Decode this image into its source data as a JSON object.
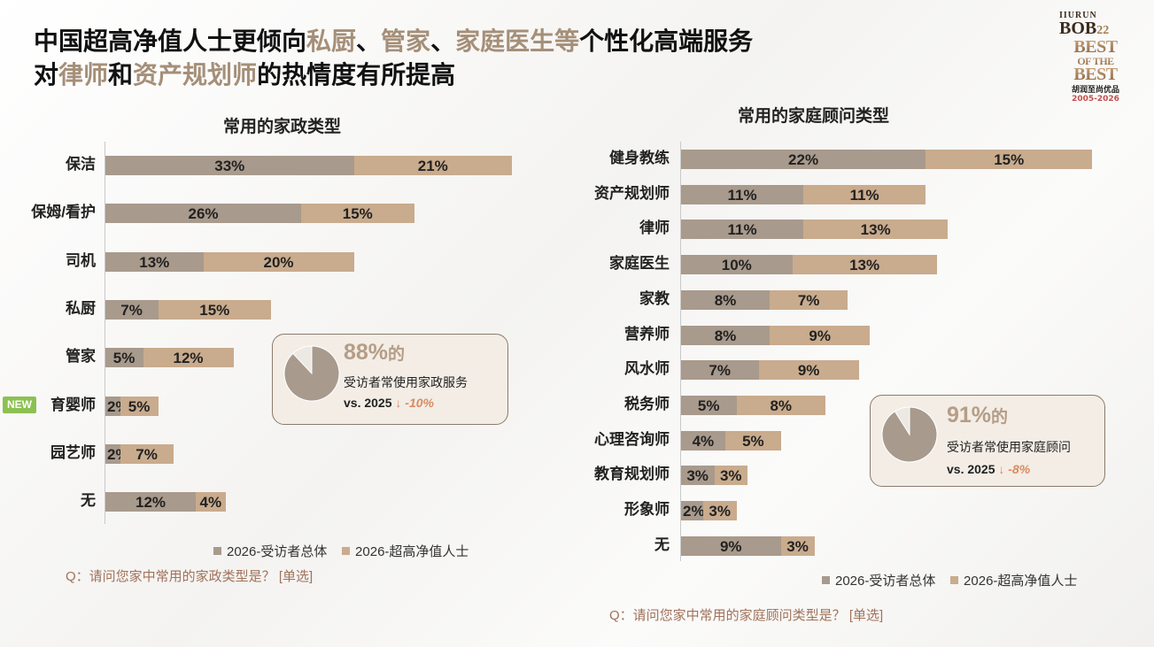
{
  "title": {
    "line1_parts": [
      "中国超高净值人士更倾向",
      "私厨",
      "、",
      "管家",
      "、",
      "家庭医生",
      "等",
      "个性化高端服务"
    ],
    "line2_parts": [
      "对",
      "律师",
      "和",
      "资产规划师",
      "的热情度有所提高"
    ]
  },
  "logo": {
    "line1": "IIURUN",
    "line2": "BOB",
    "line2b": "22",
    "line3": "BEST",
    "line3b": "OF THE",
    "line3c": "BEST",
    "line4": "胡润至尚优品",
    "line5": "2005-2026"
  },
  "new_badge": "NEW",
  "colors": {
    "series1": "#a89a8c",
    "series2": "#c9ab8d",
    "accent_text": "#a58f78",
    "question": "#a0725a",
    "change": "#d98b5f"
  },
  "chart_data": [
    {
      "type": "bar",
      "orientation": "horizontal",
      "stacked": true,
      "title": "常用的家政类型",
      "categories": [
        "保洁",
        "保姆/看护",
        "司机",
        "私厨",
        "管家",
        "育婴师",
        "园艺师",
        "无"
      ],
      "series": [
        {
          "name": "2026-受访者总体",
          "values": [
            33,
            26,
            13,
            7,
            5,
            2,
            2,
            12
          ],
          "labels": [
            "33%",
            "26%",
            "13%",
            "7%",
            "5%",
            "2%",
            "2%",
            "12%"
          ]
        },
        {
          "name": "2026-超高净值人士",
          "values": [
            21,
            15,
            20,
            15,
            12,
            5,
            7,
            4
          ],
          "labels": [
            "21%",
            "15%",
            "20%",
            "15%",
            "12%",
            "5%",
            "7%",
            "4%"
          ]
        }
      ],
      "legend": "bottom",
      "question": "Q：请问您家中常用的家政类型是？ [单选]",
      "callout": {
        "value": 88,
        "pct": "88%",
        "pct_suffix": "的",
        "desc": "受访者常使用家政服务",
        "vs": "vs. 2025",
        "change": "↓ -10%"
      }
    },
    {
      "type": "bar",
      "orientation": "horizontal",
      "stacked": true,
      "title": "常用的家庭顾问类型",
      "categories": [
        "健身教练",
        "资产规划师",
        "律师",
        "家庭医生",
        "家教",
        "营养师",
        "风水师",
        "税务师",
        "心理咨询师",
        "教育规划师",
        "形象师",
        "无"
      ],
      "series": [
        {
          "name": "2026-受访者总体",
          "values": [
            22,
            11,
            11,
            10,
            8,
            8,
            7,
            5,
            4,
            3,
            2,
            9
          ],
          "labels": [
            "22%",
            "11%",
            "11%",
            "10%",
            "8%",
            "8%",
            "7%",
            "5%",
            "4%",
            "3%",
            "2%",
            "9%"
          ]
        },
        {
          "name": "2026-超高净值人士",
          "values": [
            15,
            11,
            13,
            13,
            7,
            9,
            9,
            8,
            5,
            3,
            3,
            3
          ],
          "labels": [
            "15%",
            "11%",
            "13%",
            "13%",
            "7%",
            "9%",
            "9%",
            "8%",
            "5%",
            "3%",
            "3%",
            "3%"
          ]
        }
      ],
      "legend": "bottom",
      "question": "Q：请问您家中常用的家庭顾问类型是？ [单选]",
      "callout": {
        "value": 91,
        "pct": "91%",
        "pct_suffix": "的",
        "desc": "受访者常使用家庭顾问",
        "vs": "vs. 2025",
        "change": "↓ -8%"
      }
    }
  ]
}
